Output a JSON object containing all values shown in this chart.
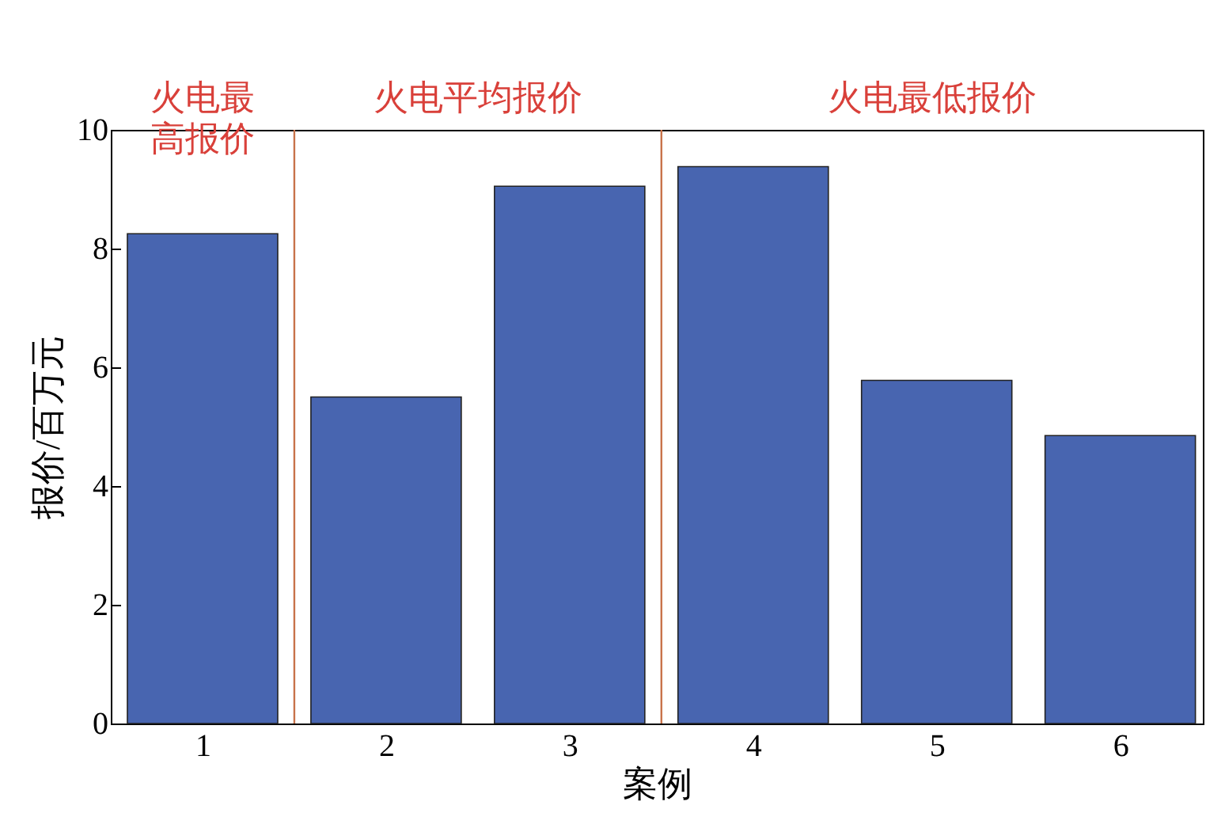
{
  "chart_data": {
    "type": "bar",
    "xlabel": "案例",
    "ylabel": "报价/百万元",
    "x": [
      1,
      2,
      3,
      4,
      5,
      6
    ],
    "values": [
      8.25,
      5.5,
      9.05,
      9.38,
      5.78,
      4.85
    ],
    "color": "#4865b0",
    "xlim": [
      0.5,
      6.45
    ],
    "xticks": [
      1,
      2,
      3,
      4,
      5,
      6
    ],
    "ylim": [
      0,
      10
    ],
    "yticks": [
      0,
      2,
      4,
      6,
      8,
      10
    ],
    "ref_lines": [
      {
        "axis": "x",
        "value": 1.5,
        "color": "#c8734a"
      },
      {
        "axis": "x",
        "value": 3.5,
        "color": "#c8734a"
      }
    ],
    "annotations": [
      "火电最高报价",
      "火电平均报价",
      "火电最低报价"
    ],
    "grid": false
  }
}
